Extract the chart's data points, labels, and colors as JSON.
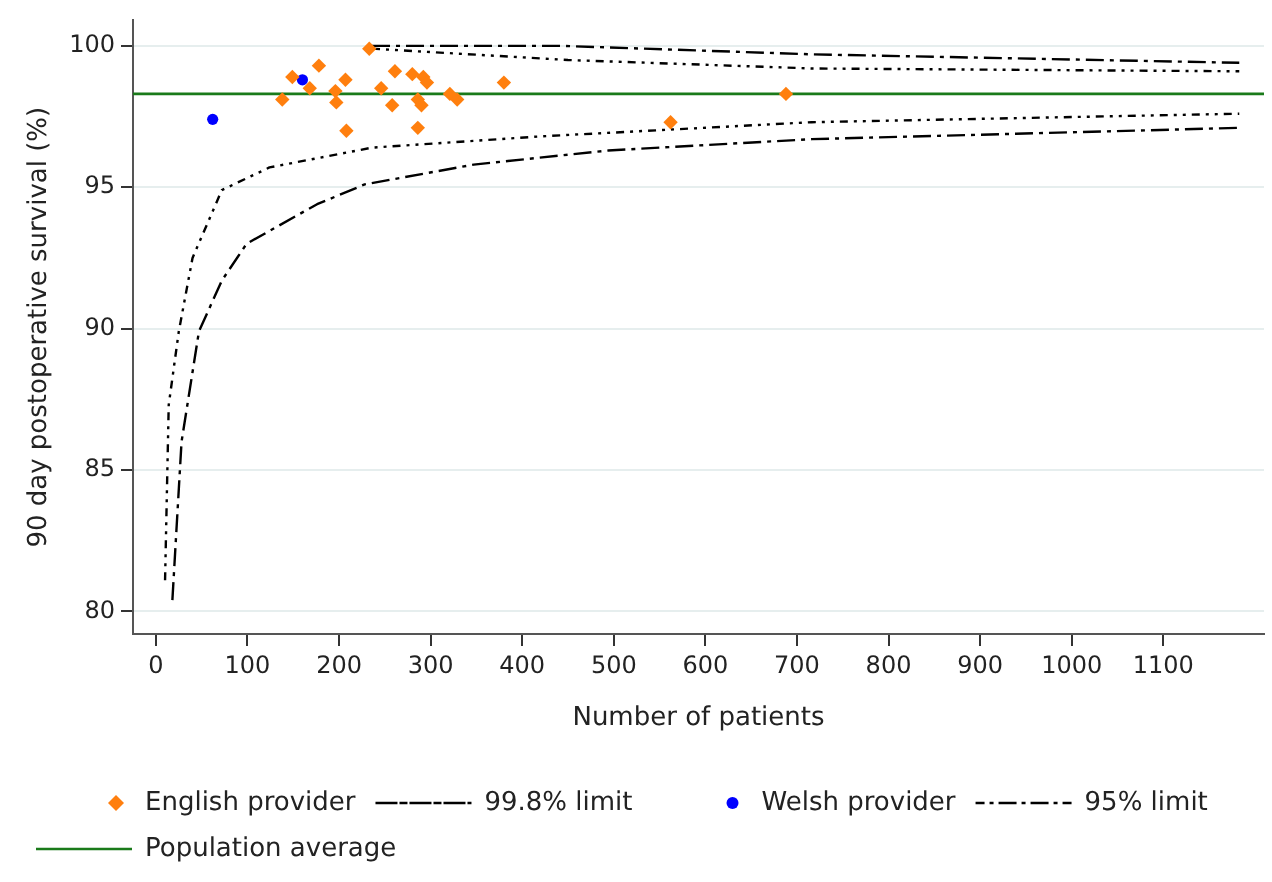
{
  "chart_data": {
    "type": "scatter",
    "xlabel": "Number of patients",
    "ylabel": "90 day postoperative survival (%)",
    "xlim": [
      -25,
      1210
    ],
    "ylim": [
      79.2,
      100.9
    ],
    "xticks": [
      0,
      100,
      200,
      300,
      400,
      500,
      600,
      700,
      800,
      900,
      1000,
      1100
    ],
    "yticks": [
      80,
      85,
      90,
      95,
      100
    ],
    "grid": "y",
    "legend": "bottom",
    "series": [
      {
        "name": "English provider",
        "marker": "diamond",
        "color": "#ff7f0e",
        "x": [
          233,
          149,
          178,
          168,
          138,
          196,
          197,
          207,
          208,
          246,
          261,
          258,
          280,
          292,
          296,
          286,
          290,
          286,
          321,
          329,
          380,
          562,
          688
        ],
        "values": [
          99.9,
          98.9,
          99.3,
          98.5,
          98.1,
          98.4,
          98.0,
          98.8,
          97.0,
          98.5,
          99.1,
          97.9,
          99.0,
          98.9,
          98.7,
          98.1,
          97.9,
          97.1,
          98.3,
          98.1,
          98.7,
          97.3,
          98.3
        ]
      },
      {
        "name": "99.8% limit",
        "type": "line",
        "marker": "none",
        "line_style": "dashed",
        "color": "#000000",
        "x": [
          18,
          28,
          47,
          72,
          99,
          176,
          228,
          347,
          494,
          716,
          1183,
          null,
          236,
          443,
          716,
          1183
        ],
        "values": [
          80.4,
          86.0,
          89.9,
          91.7,
          93.0,
          94.4,
          95.1,
          95.8,
          96.3,
          96.7,
          97.1,
          null,
          100.0,
          100.0,
          99.7,
          99.4
        ]
      },
      {
        "name": "Welsh provider",
        "marker": "circle",
        "color": "#0000ff",
        "x": [
          62,
          160
        ],
        "values": [
          97.4,
          98.8
        ]
      },
      {
        "name": "95% limit",
        "type": "line",
        "marker": "none",
        "line_style": "dotted",
        "color": "#000000",
        "x": [
          10,
          14,
          25,
          40,
          72,
          124,
          236,
          421,
          716,
          1183,
          null,
          236,
          450,
          716,
          1183
        ],
        "values": [
          81.1,
          87.3,
          89.9,
          92.5,
          94.9,
          95.7,
          96.4,
          96.8,
          97.3,
          97.6,
          null,
          99.9,
          99.5,
          99.2,
          99.1
        ]
      }
    ],
    "ref_lines": [
      {
        "axis": "y",
        "value": 98.3,
        "label": "Population average",
        "color": "#1a7a1a"
      }
    ]
  }
}
